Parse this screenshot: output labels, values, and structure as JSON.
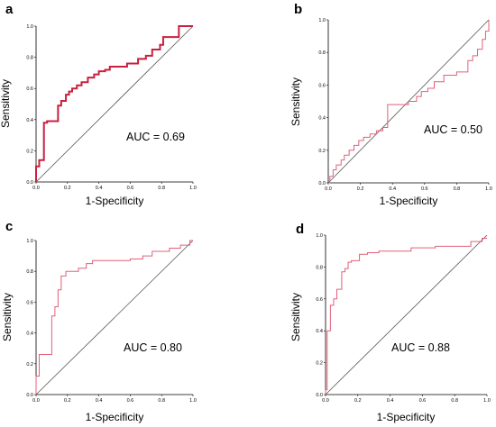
{
  "figure": {
    "x_ticks": [
      "0.0",
      "0.2",
      "0.4",
      "0.6",
      "0.8",
      "1.0"
    ],
    "y_ticks": [
      "0.0",
      "0.2",
      "0.4",
      "0.6",
      "0.8",
      "1.0"
    ],
    "colors": {
      "roc": "#e0607a",
      "roc_dark": "#c8203f",
      "diagonal": "#555555",
      "axis": "#000000"
    }
  },
  "chart_data": [
    {
      "type": "line",
      "panel": "a",
      "xlabel": "1-Specificity",
      "ylabel": "Sensitivity",
      "annotation": "AUC = 0.69",
      "xlim": [
        0,
        1
      ],
      "ylim": [
        0,
        1
      ],
      "series": [
        {
          "x": [
            0,
            0,
            0.02,
            0.02,
            0.05,
            0.05,
            0.07,
            0.07,
            0.14,
            0.14,
            0.16,
            0.16,
            0.19,
            0.19,
            0.21,
            0.21,
            0.23,
            0.23,
            0.26,
            0.26,
            0.29,
            0.29,
            0.33,
            0.33,
            0.37,
            0.37,
            0.4,
            0.4,
            0.44,
            0.44,
            0.47,
            0.47,
            0.58,
            0.58,
            0.65,
            0.65,
            0.7,
            0.7,
            0.74,
            0.74,
            0.79,
            0.79,
            0.81,
            0.81,
            0.91,
            0.91,
            1.0
          ],
          "y": [
            0,
            0.1,
            0.1,
            0.14,
            0.14,
            0.38,
            0.38,
            0.39,
            0.39,
            0.49,
            0.49,
            0.52,
            0.52,
            0.56,
            0.56,
            0.58,
            0.58,
            0.6,
            0.6,
            0.62,
            0.62,
            0.64,
            0.64,
            0.67,
            0.67,
            0.69,
            0.69,
            0.71,
            0.71,
            0.72,
            0.72,
            0.74,
            0.74,
            0.76,
            0.76,
            0.79,
            0.79,
            0.81,
            0.81,
            0.85,
            0.85,
            0.88,
            0.88,
            0.93,
            0.93,
            1.0,
            1.0
          ]
        }
      ]
    },
    {
      "type": "line",
      "panel": "b",
      "xlabel": "1-Specificity",
      "ylabel": "Sensitivity",
      "annotation": "AUC = 0.50",
      "xlim": [
        0,
        1
      ],
      "ylim": [
        0,
        1
      ],
      "series": [
        {
          "x": [
            0,
            0.01,
            0.01,
            0.03,
            0.03,
            0.05,
            0.05,
            0.08,
            0.08,
            0.1,
            0.1,
            0.13,
            0.13,
            0.16,
            0.16,
            0.19,
            0.19,
            0.22,
            0.22,
            0.26,
            0.26,
            0.3,
            0.3,
            0.34,
            0.34,
            0.37,
            0.37,
            0.5,
            0.5,
            0.55,
            0.55,
            0.58,
            0.58,
            0.62,
            0.62,
            0.66,
            0.66,
            0.72,
            0.72,
            0.8,
            0.8,
            0.87,
            0.87,
            0.9,
            0.9,
            0.93,
            0.93,
            0.96,
            0.96,
            0.98,
            0.98,
            1.0,
            1.0
          ],
          "y": [
            0,
            0,
            0.04,
            0.04,
            0.08,
            0.08,
            0.11,
            0.11,
            0.14,
            0.14,
            0.17,
            0.17,
            0.2,
            0.2,
            0.23,
            0.23,
            0.26,
            0.26,
            0.28,
            0.28,
            0.3,
            0.3,
            0.32,
            0.32,
            0.34,
            0.34,
            0.48,
            0.48,
            0.5,
            0.5,
            0.53,
            0.53,
            0.56,
            0.56,
            0.58,
            0.58,
            0.62,
            0.62,
            0.66,
            0.66,
            0.68,
            0.68,
            0.75,
            0.75,
            0.78,
            0.78,
            0.82,
            0.82,
            0.88,
            0.88,
            0.93,
            0.93,
            1.0
          ]
        }
      ]
    },
    {
      "type": "line",
      "panel": "c",
      "xlabel": "1-Specificity",
      "ylabel": "Sensitivity",
      "annotation": "AUC = 0.80",
      "xlim": [
        0,
        1
      ],
      "ylim": [
        0,
        1
      ],
      "series": [
        {
          "x": [
            0,
            0,
            0.02,
            0.02,
            0.1,
            0.1,
            0.12,
            0.12,
            0.14,
            0.14,
            0.16,
            0.16,
            0.19,
            0.19,
            0.27,
            0.27,
            0.32,
            0.32,
            0.36,
            0.36,
            0.6,
            0.6,
            0.68,
            0.68,
            0.74,
            0.74,
            0.85,
            0.85,
            0.92,
            0.92,
            0.98,
            0.98,
            1.0
          ],
          "y": [
            0,
            0.12,
            0.12,
            0.26,
            0.26,
            0.51,
            0.51,
            0.57,
            0.57,
            0.68,
            0.68,
            0.77,
            0.77,
            0.8,
            0.8,
            0.82,
            0.82,
            0.85,
            0.85,
            0.87,
            0.87,
            0.88,
            0.88,
            0.9,
            0.9,
            0.93,
            0.93,
            0.95,
            0.95,
            0.97,
            0.97,
            1.0,
            1.0
          ]
        }
      ]
    },
    {
      "type": "line",
      "panel": "d",
      "xlabel": "1-Specificity",
      "ylabel": "Sensitivity",
      "annotation": "AUC = 0.88",
      "xlim": [
        0,
        1
      ],
      "ylim": [
        0,
        1
      ],
      "series": [
        {
          "x": [
            0,
            0,
            0.01,
            0.01,
            0.03,
            0.03,
            0.05,
            0.05,
            0.07,
            0.07,
            0.1,
            0.1,
            0.12,
            0.12,
            0.14,
            0.14,
            0.16,
            0.16,
            0.21,
            0.21,
            0.26,
            0.26,
            0.33,
            0.33,
            0.53,
            0.53,
            0.68,
            0.68,
            0.9,
            0.9,
            0.97,
            0.97,
            1.0
          ],
          "y": [
            0,
            0.03,
            0.03,
            0.4,
            0.4,
            0.56,
            0.56,
            0.6,
            0.6,
            0.66,
            0.66,
            0.77,
            0.77,
            0.79,
            0.79,
            0.83,
            0.83,
            0.84,
            0.84,
            0.88,
            0.88,
            0.89,
            0.89,
            0.9,
            0.9,
            0.92,
            0.92,
            0.93,
            0.93,
            0.96,
            0.96,
            0.98,
            0.98
          ]
        }
      ]
    }
  ]
}
